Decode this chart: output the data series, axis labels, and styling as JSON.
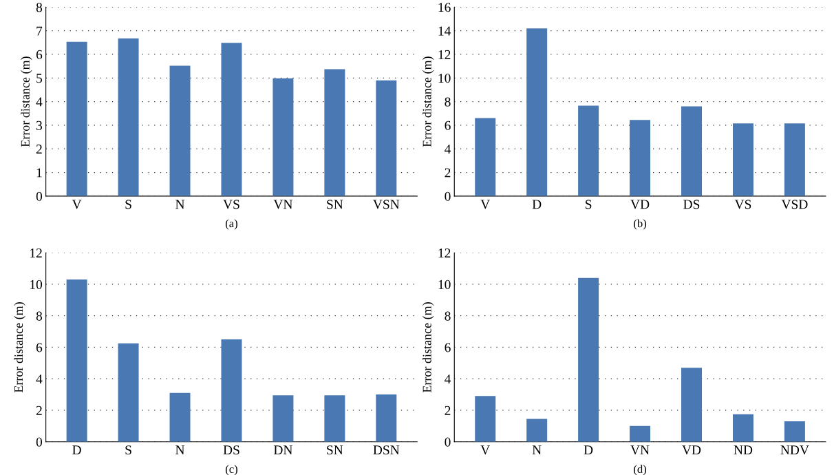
{
  "chart_data": [
    {
      "type": "bar",
      "xlabel": "(a)",
      "ylabel": "Error distance (m)",
      "categories": [
        "V",
        "S",
        "N",
        "VS",
        "VN",
        "SN",
        "VSN"
      ],
      "values": [
        6.53,
        6.68,
        5.52,
        6.49,
        4.99,
        5.37,
        4.9
      ],
      "color": "#4a78b2",
      "ylim": [
        0,
        8
      ],
      "yticks": [
        0,
        1,
        2,
        3,
        4,
        5,
        6,
        7,
        8
      ],
      "grid": "y",
      "line_style": "dotted"
    },
    {
      "type": "bar",
      "xlabel": "(b)",
      "ylabel": "Error distance (m)",
      "categories": [
        "V",
        "D",
        "S",
        "VD",
        "DS",
        "VS",
        "VSD"
      ],
      "values": [
        6.6,
        14.2,
        7.65,
        6.45,
        7.6,
        6.15,
        6.15
      ],
      "color": "#4a78b2",
      "ylim": [
        0,
        16
      ],
      "yticks": [
        0,
        2,
        4,
        6,
        8,
        10,
        12,
        14,
        16
      ],
      "grid": "y",
      "line_style": "dotted"
    },
    {
      "type": "bar",
      "xlabel": "(c)",
      "ylabel": "Error distance (m)",
      "categories": [
        "D",
        "S",
        "N",
        "DS",
        "DN",
        "SN",
        "DSN"
      ],
      "values": [
        10.3,
        6.25,
        3.1,
        6.5,
        2.95,
        2.95,
        3.0
      ],
      "color": "#4a78b2",
      "ylim": [
        0,
        12
      ],
      "yticks": [
        0,
        2,
        4,
        6,
        8,
        10,
        12
      ],
      "grid": "y",
      "line_style": "dotted"
    },
    {
      "type": "bar",
      "xlabel": "(d)",
      "ylabel": "Error distance (m)",
      "categories": [
        "V",
        "N",
        "D",
        "VN",
        "VD",
        "ND",
        "NDV"
      ],
      "values": [
        2.9,
        1.45,
        10.4,
        1.0,
        4.7,
        1.75,
        1.3
      ],
      "color": "#4a78b2",
      "ylim": [
        0,
        12
      ],
      "yticks": [
        0,
        2,
        4,
        6,
        8,
        10,
        12
      ],
      "grid": "y",
      "line_style": "dotted"
    }
  ]
}
